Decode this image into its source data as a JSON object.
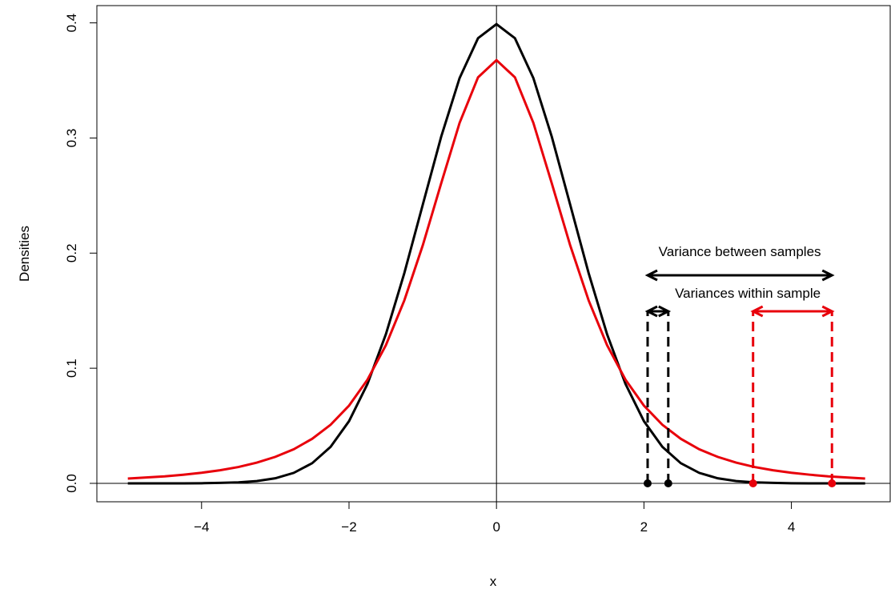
{
  "chart_data": {
    "type": "line",
    "x_label": "x",
    "y_label": "Densities",
    "x": [
      -5,
      -4.75,
      -4.5,
      -4.25,
      -4,
      -3.75,
      -3.5,
      -3.25,
      -3,
      -2.75,
      -2.5,
      -2.25,
      -2,
      -1.75,
      -1.5,
      -1.25,
      -1,
      -0.75,
      -0.5,
      -0.25,
      0,
      0.25,
      0.5,
      0.75,
      1,
      1.25,
      1.5,
      1.75,
      2,
      2.25,
      2.5,
      2.75,
      3,
      3.25,
      3.5,
      3.75,
      4,
      4.25,
      4.5,
      4.75,
      5
    ],
    "series": [
      {
        "color": "#000000",
        "values": [
          0,
          0,
          0,
          0,
          0.0001,
          0.0004,
          0.0009,
          0.002,
          0.0044,
          0.0091,
          0.0175,
          0.0317,
          0.054,
          0.0863,
          0.1295,
          0.1826,
          0.242,
          0.3011,
          0.3521,
          0.3867,
          0.3989,
          0.3867,
          0.3521,
          0.3011,
          0.242,
          0.1826,
          0.1295,
          0.0863,
          0.054,
          0.0317,
          0.0175,
          0.0091,
          0.0044,
          0.002,
          0.0009,
          0.0004,
          0.0001,
          0,
          0,
          0,
          0
        ]
      },
      {
        "color": "#e8000b",
        "values": [
          0.0042,
          0.0051,
          0.0061,
          0.0075,
          0.0092,
          0.0114,
          0.0142,
          0.018,
          0.023,
          0.0296,
          0.0387,
          0.0509,
          0.0675,
          0.09,
          0.12,
          0.1589,
          0.2067,
          0.2606,
          0.3132,
          0.3527,
          0.3676,
          0.3527,
          0.3132,
          0.2606,
          0.2067,
          0.1589,
          0.12,
          0.09,
          0.0675,
          0.0509,
          0.0387,
          0.0296,
          0.023,
          0.018,
          0.0142,
          0.0114,
          0.0092,
          0.0075,
          0.0061,
          0.0051,
          0.0042
        ]
      }
    ],
    "points": {
      "x": [
        2.05,
        2.33,
        3.48,
        4.55
      ],
      "values": [
        0,
        0,
        0,
        0
      ],
      "colors": [
        "#000000",
        "#000000",
        "#e8000b",
        "#e8000b"
      ]
    },
    "annotations": [
      "Variance between samples",
      "Variances within sample"
    ],
    "xlim": [
      -5.42,
      5.34
    ],
    "ylim": [
      -0.016,
      0.415
    ],
    "xticks": [
      {
        "value": -4,
        "label": "−4"
      },
      {
        "value": -2,
        "label": "−2"
      },
      0,
      2,
      4
    ],
    "yticks": [
      {
        "value": 0,
        "label": "0.0"
      },
      0.1,
      0.2,
      0.3,
      0.4
    ]
  }
}
